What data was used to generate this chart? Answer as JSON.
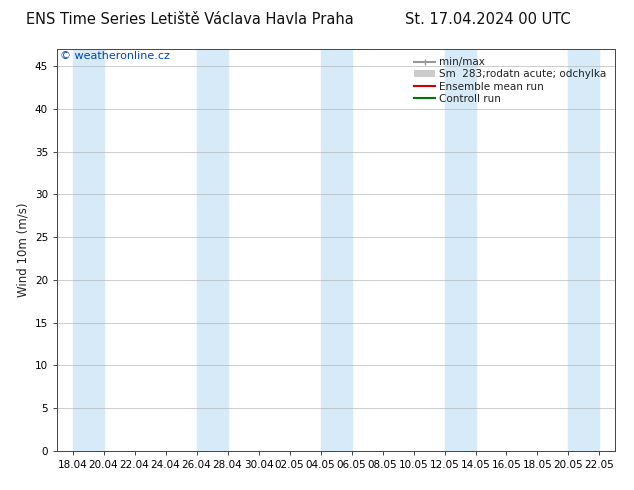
{
  "title_left": "ENS Time Series Letiště Václava Havla Praha",
  "title_right": "St. 17.04.2024 00 UTC",
  "ylabel": "Wind 10m (m/s)",
  "yticks": [
    0,
    5,
    10,
    15,
    20,
    25,
    30,
    35,
    40,
    45
  ],
  "ylim": [
    0,
    47
  ],
  "xtick_labels": [
    "18.04",
    "20.04",
    "22.04",
    "24.04",
    "26.04",
    "28.04",
    "30.04",
    "02.05",
    "04.05",
    "06.05",
    "08.05",
    "10.05",
    "12.05",
    "14.05",
    "16.05",
    "18.05",
    "20.05",
    "22.05"
  ],
  "copyright_text": "© weatheronline.cz",
  "copyright_color": "#0044bb",
  "bg_color": "#ffffff",
  "plot_bg_color": "#ffffff",
  "band_color": "#d6eaf8",
  "band_positions": [
    1,
    5,
    9,
    13,
    17
  ],
  "grid_color": "#aaaaaa",
  "legend_label_minmax": "min/max",
  "legend_label_sm": "Sm  283;rodatn acute; odchylka",
  "legend_label_ensemble": "Ensemble mean run",
  "legend_label_control": "Controll run",
  "legend_color_minmax": "#999999",
  "legend_color_sm": "#cccccc",
  "legend_color_ensemble": "#cc0000",
  "legend_color_control": "#007700",
  "title_fontsize": 10.5,
  "tick_fontsize": 7.5,
  "ylabel_fontsize": 8.5,
  "copyright_fontsize": 8,
  "legend_fontsize": 7.5
}
